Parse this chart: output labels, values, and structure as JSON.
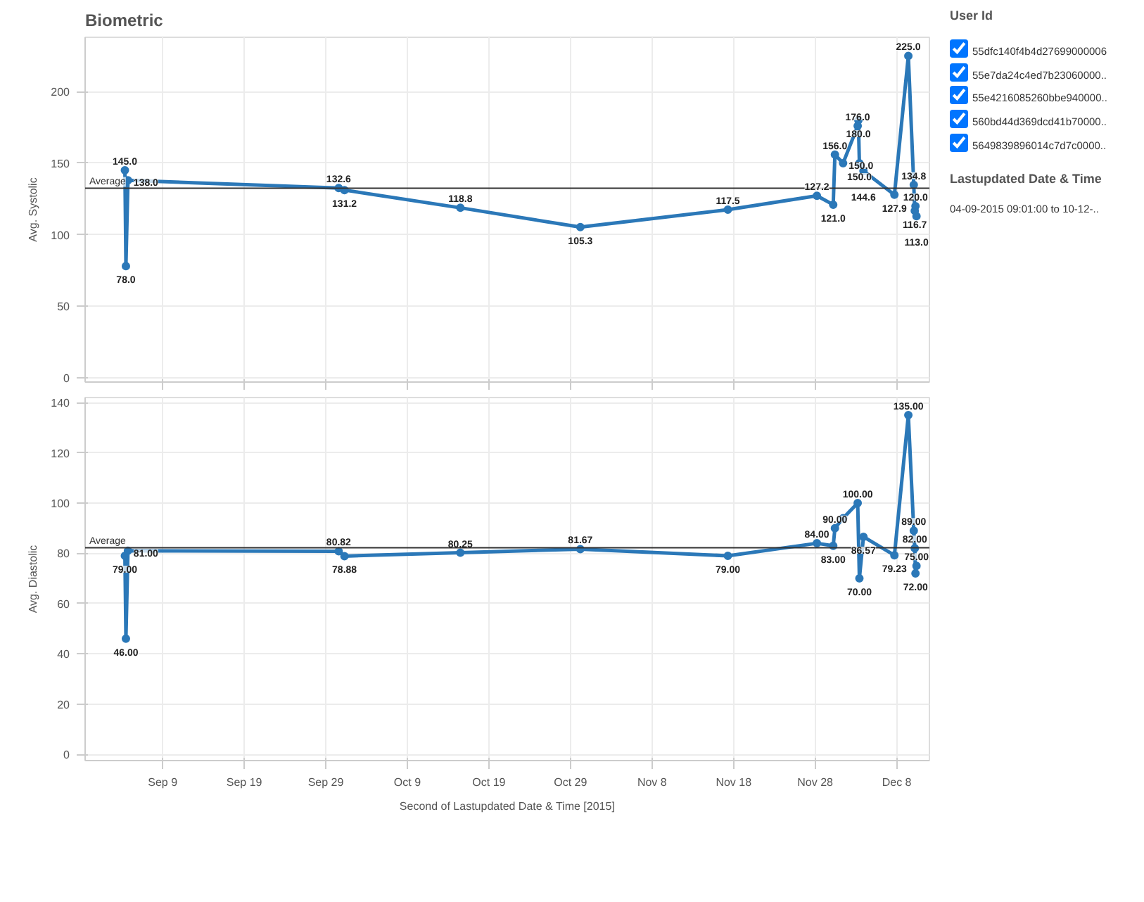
{
  "chart_data": [
    {
      "type": "line",
      "title": "Biometric",
      "ylabel": "Avg. Systolic",
      "tick_labels": "y",
      "grid": true,
      "marker": "circle",
      "line_style": "solid",
      "xlim": [
        "2015-08-30T12:00",
        "2015-12-12T00:00"
      ],
      "xticks": [
        {
          "value": "2015-09-09",
          "label": null
        },
        {
          "value": "2015-09-19",
          "label": null
        },
        {
          "value": "2015-09-29",
          "label": null
        },
        {
          "value": "2015-10-09",
          "label": null
        },
        {
          "value": "2015-10-19",
          "label": null
        },
        {
          "value": "2015-10-29",
          "label": null
        },
        {
          "value": "2015-11-08",
          "label": null
        },
        {
          "value": "2015-11-18",
          "label": null
        },
        {
          "value": "2015-11-28",
          "label": null
        },
        {
          "value": "2015-12-08",
          "label": null
        }
      ],
      "ylim": [
        -3,
        238
      ],
      "yticks": [
        0,
        50,
        100,
        150,
        200
      ],
      "ref_lines": [
        {
          "axis": "y",
          "value": 132.5,
          "label": "Average",
          "color": "#333333"
        }
      ],
      "series": [
        {
          "color": "#2b78b8",
          "x": [
            "2015-09-04T09:01",
            "2015-09-04T12:00",
            "2015-09-04T18:00",
            "2015-09-30T14:00",
            "2015-10-01T07:00",
            "2015-10-15T12:00",
            "2015-10-30T05:00",
            "2015-11-17T07:00",
            "2015-11-28T05:00",
            "2015-11-30T05:00",
            "2015-11-30T10:00",
            "2015-12-01T10:00",
            "2015-12-03T05:00",
            "2015-12-03T07:00",
            "2015-12-03T10:00",
            "2015-12-03T22:00",
            "2015-12-07T17:00",
            "2015-12-09T10:00",
            "2015-12-10T02:00",
            "2015-12-10T05:00",
            "2015-12-10T07:00",
            "2015-12-10T10:00"
          ],
          "values": [
            145.0,
            78.0,
            138.0,
            132.6,
            131.2,
            118.8,
            105.3,
            117.5,
            127.2,
            121.0,
            156.0,
            150.0,
            176.0,
            180.0,
            150.0,
            144.6,
            127.9,
            225.0,
            134.8,
            116.7,
            120.0,
            113.0
          ],
          "value_labels": [
            "145.0",
            "78.0",
            "138.0",
            "132.6",
            "131.2",
            "118.8",
            "105.3",
            "117.5",
            "127.2",
            "121.0",
            "156.0",
            "150.0",
            "176.0",
            "180.0",
            "150.0",
            "144.6",
            "127.9",
            "225.0",
            "134.8",
            "116.7",
            "120.0",
            "113.0"
          ]
        }
      ]
    },
    {
      "type": "line",
      "xlabel": "Second of Lastupdated Date & Time [2015]",
      "ylabel": "Avg. Diastolic",
      "grid": true,
      "marker": "circle",
      "line_style": "solid",
      "xlim": [
        "2015-08-30T12:00",
        "2015-12-12T00:00"
      ],
      "xticks": [
        {
          "value": "2015-09-09",
          "label": "Sep 9"
        },
        {
          "value": "2015-09-19",
          "label": "Sep 19"
        },
        {
          "value": "2015-09-29",
          "label": "Sep 29"
        },
        {
          "value": "2015-10-09",
          "label": "Oct 9"
        },
        {
          "value": "2015-10-19",
          "label": "Oct 19"
        },
        {
          "value": "2015-10-29",
          "label": "Oct 29"
        },
        {
          "value": "2015-11-08",
          "label": "Nov 8"
        },
        {
          "value": "2015-11-18",
          "label": "Nov 18"
        },
        {
          "value": "2015-11-28",
          "label": "Nov 28"
        },
        {
          "value": "2015-12-08",
          "label": "Dec 8"
        }
      ],
      "ylim": [
        -2.5,
        142
      ],
      "yticks": [
        0,
        20,
        40,
        60,
        80,
        100,
        120,
        140
      ],
      "ref_lines": [
        {
          "axis": "y",
          "value": 82.2,
          "label": "Average",
          "color": "#333333"
        }
      ],
      "series": [
        {
          "color": "#2b78b8",
          "x": [
            "2015-09-04T09:01",
            "2015-09-04T12:00",
            "2015-09-04T18:00",
            "2015-09-30T14:00",
            "2015-10-01T07:00",
            "2015-10-15T12:00",
            "2015-10-30T05:00",
            "2015-11-17T07:00",
            "2015-11-28T05:00",
            "2015-11-30T05:00",
            "2015-11-30T10:00",
            "2015-12-01T10:00",
            "2015-12-03T05:00",
            "2015-12-03T10:00",
            "2015-12-03T22:00",
            "2015-12-07T17:00",
            "2015-12-09T10:00",
            "2015-12-10T02:00",
            "2015-12-10T05:00",
            "2015-12-10T07:00",
            "2015-12-10T10:00"
          ],
          "values": [
            79.0,
            46.0,
            81.0,
            80.82,
            78.88,
            80.25,
            81.67,
            79.0,
            84.0,
            83.0,
            90.0,
            94,
            100.0,
            70.0,
            86.57,
            79.23,
            135.0,
            89.0,
            82.0,
            72.0,
            75.0
          ],
          "value_labels": [
            "79.00",
            "46.00",
            "81.00",
            "80.82",
            "78.88",
            "80.25",
            "81.67",
            "79.00",
            "84.00",
            "83.00",
            "90.00",
            null,
            "100.00",
            "70.00",
            "86.57",
            "79.23",
            "135.00",
            "89.00",
            "82.00",
            "72.00",
            "75.00"
          ]
        }
      ]
    },
    {
      "type": "other",
      "title": "User Id",
      "annotations": [
        "55dfc140f4b4d27699000006",
        "55e7da24c4ed7b23060000..",
        "55e4216085260bbe940000..",
        "560bd44d369dcd41b70000..",
        "5649839896014c7d7c0000.."
      ]
    },
    {
      "type": "other",
      "title": "Lastupdated Date & Time",
      "subtitle": "04-09-2015 09:01:00 to 10-12-.."
    }
  ]
}
